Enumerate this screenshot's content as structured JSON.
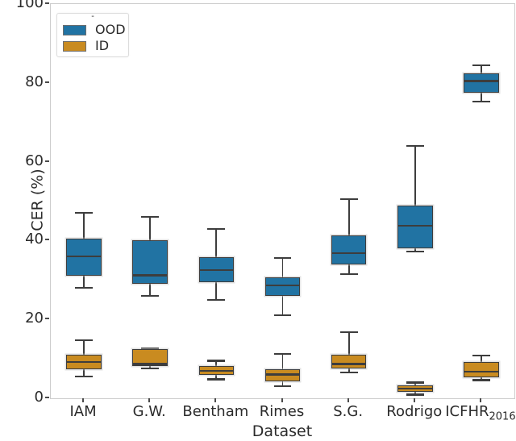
{
  "legend": {
    "title": "-",
    "entries": [
      {
        "label": "OOD"
      },
      {
        "label": "ID"
      }
    ]
  },
  "chart_data": {
    "type": "boxplot",
    "title": "",
    "xlabel": "Dataset",
    "ylabel": "CER (%)",
    "ylim": [
      0,
      100
    ],
    "y_ticks": [
      0,
      20,
      40,
      60,
      80,
      100
    ],
    "grid": false,
    "legend_position": "upper-left",
    "categories": [
      {
        "text": "IAM"
      },
      {
        "text": "G.W."
      },
      {
        "text": "Bentham"
      },
      {
        "text": "Rimes"
      },
      {
        "text": "S.G."
      },
      {
        "text": "Rodrigo"
      },
      {
        "text": "ICFHR",
        "sub": "2016"
      }
    ],
    "series": [
      {
        "name": "OOD",
        "color": "#2173a3",
        "boxes": [
          {
            "whisker_low": 28.0,
            "q1": 31.0,
            "median": 36.0,
            "q3": 40.5,
            "whisker_high": 47.0
          },
          {
            "whisker_low": 26.0,
            "q1": 29.0,
            "median": 31.2,
            "q3": 40.0,
            "whisker_high": 46.0
          },
          {
            "whisker_low": 25.0,
            "q1": 29.5,
            "median": 32.5,
            "q3": 35.8,
            "whisker_high": 43.0
          },
          {
            "whisker_low": 21.0,
            "q1": 26.0,
            "median": 28.6,
            "q3": 30.6,
            "whisker_high": 35.5
          },
          {
            "whisker_low": 31.5,
            "q1": 34.0,
            "median": 36.8,
            "q3": 41.3,
            "whisker_high": 50.5
          },
          {
            "whisker_low": 37.2,
            "q1": 38.0,
            "median": 43.8,
            "q3": 48.8,
            "whisker_high": 64.0
          },
          {
            "whisker_low": 75.3,
            "q1": 77.5,
            "median": 80.5,
            "q3": 82.5,
            "whisker_high": 84.5
          }
        ]
      },
      {
        "name": "ID",
        "color": "#c98b20",
        "boxes": [
          {
            "whisker_low": 5.5,
            "q1": 7.3,
            "median": 9.2,
            "q3": 11.0,
            "whisker_high": 14.8
          },
          {
            "whisker_low": 7.6,
            "q1": 8.2,
            "median": 8.7,
            "q3": 12.5,
            "whisker_high": 12.6
          },
          {
            "whisker_low": 4.8,
            "q1": 6.0,
            "median": 7.0,
            "q3": 8.2,
            "whisker_high": 9.5
          },
          {
            "whisker_low": 3.0,
            "q1": 4.3,
            "median": 6.0,
            "q3": 7.3,
            "whisker_high": 11.3
          },
          {
            "whisker_low": 6.6,
            "q1": 7.5,
            "median": 8.7,
            "q3": 11.0,
            "whisker_high": 16.8
          },
          {
            "whisker_low": 0.9,
            "q1": 1.6,
            "median": 2.4,
            "q3": 3.2,
            "whisker_high": 4.0
          },
          {
            "whisker_low": 4.6,
            "q1": 5.3,
            "median": 6.8,
            "q3": 9.2,
            "whisker_high": 10.9
          }
        ]
      }
    ]
  }
}
